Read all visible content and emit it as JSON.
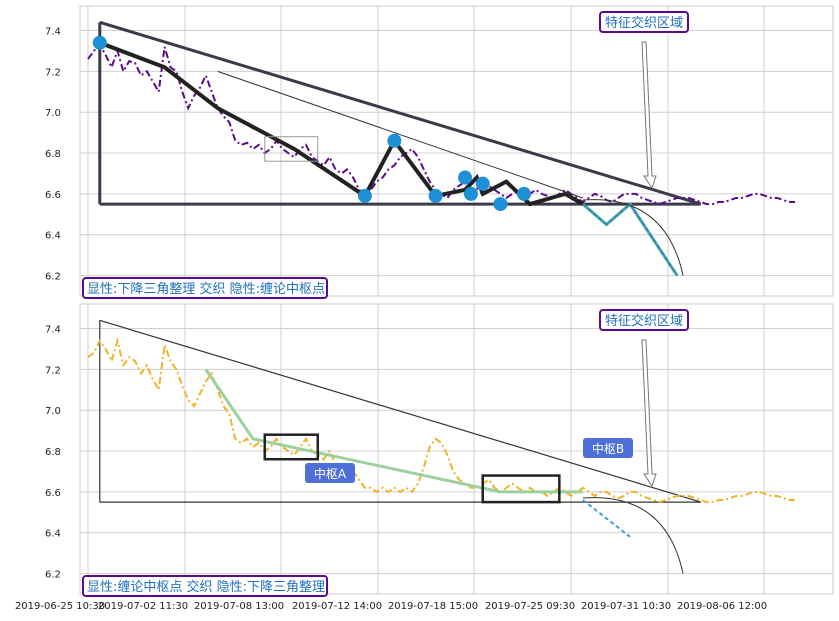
{
  "chart_data": [
    {
      "type": "line",
      "panel": "top",
      "ylim": [
        6.1,
        7.52
      ],
      "y_ticks": [
        "7.4",
        "7.2",
        "7.0",
        "6.8",
        "6.6",
        "6.4",
        "6.2"
      ],
      "y_tick_values": [
        7.4,
        7.2,
        7.0,
        6.8,
        6.6,
        6.4,
        6.2
      ],
      "grid": true,
      "legend_text": "显性:下降三角整理 交织 隐性:缠论中枢点",
      "annotation_text": "特征交织区域",
      "colors": {
        "price": "#5b0a91",
        "trend": "#3a3a4a",
        "markers": "#1e90d6",
        "legend_border": "#5b0a91",
        "legend_text": "#1f6fbf"
      },
      "series": [
        {
          "x": [
            0,
            1,
            2,
            3,
            4,
            5,
            6,
            7,
            8,
            9,
            10,
            11,
            12,
            13,
            14,
            15,
            16,
            17,
            18,
            19,
            20,
            21,
            22,
            23,
            24,
            25,
            26,
            27,
            28,
            29,
            30,
            31,
            32,
            33,
            34,
            35,
            36,
            37,
            38,
            39,
            40,
            41,
            42,
            43,
            44,
            45,
            46,
            47,
            48,
            49,
            50,
            51,
            52,
            53,
            54,
            55,
            56,
            57,
            58,
            59,
            60,
            61,
            62,
            63,
            64,
            65,
            66,
            67,
            68,
            69,
            70,
            71,
            72,
            73,
            74,
            75,
            76,
            77,
            78,
            79,
            80,
            81,
            82,
            83,
            84,
            85,
            86,
            87,
            88,
            89,
            90,
            91,
            92,
            93,
            94,
            95,
            96,
            97,
            98,
            99,
            100,
            101,
            102,
            103,
            104,
            105,
            106,
            107,
            108,
            109,
            110,
            111,
            112,
            113,
            114,
            115,
            116,
            117,
            118,
            119,
            120
          ],
          "y": [
            7.26,
            7.3,
            7.33,
            7.28,
            7.22,
            7.3,
            7.2,
            7.25,
            7.24,
            7.18,
            7.2,
            7.15,
            7.1,
            7.32,
            7.22,
            7.2,
            7.1,
            7.02,
            7.08,
            7.12,
            7.18,
            7.1,
            7.02,
            6.98,
            6.95,
            6.86,
            6.84,
            6.85,
            6.82,
            6.84,
            6.8,
            6.82,
            6.86,
            6.82,
            6.8,
            6.78,
            6.82,
            6.84,
            6.78,
            6.76,
            6.74,
            6.78,
            6.72,
            6.7,
            6.72,
            6.68,
            6.62,
            6.6,
            6.62,
            6.66,
            6.68,
            6.72,
            6.74,
            6.78,
            6.8,
            6.82,
            6.78,
            6.72,
            6.66,
            6.62,
            6.6,
            6.58,
            6.62,
            6.64,
            6.66,
            6.6,
            6.62,
            6.68,
            6.64,
            6.62,
            6.6,
            6.58,
            6.6,
            6.62,
            6.58,
            6.6,
            6.62,
            6.6,
            6.59,
            6.58,
            6.6,
            6.62,
            6.6,
            6.58,
            6.56,
            6.58,
            6.6,
            6.59,
            6.57,
            6.56,
            6.58,
            6.6,
            6.6,
            6.6,
            6.58,
            6.57,
            6.56,
            6.55,
            6.56,
            6.57,
            6.58,
            6.58,
            6.58,
            6.57,
            6.56,
            6.55,
            6.55,
            6.56,
            6.56,
            6.57,
            6.58,
            6.58,
            6.59,
            6.6,
            6.6,
            6.59,
            6.58,
            6.58,
            6.57,
            6.56,
            6.56
          ]
        }
      ]
    },
    {
      "type": "line",
      "panel": "bottom",
      "ylim": [
        6.1,
        7.52
      ],
      "y_ticks": [
        "7.4",
        "7.2",
        "7.0",
        "6.8",
        "6.6",
        "6.4",
        "6.2"
      ],
      "y_tick_values": [
        7.4,
        7.2,
        7.0,
        6.8,
        6.6,
        6.4,
        6.2
      ],
      "x_tick_labels": [
        "2019-06-25 10:30",
        "2019-07-02 11:30",
        "2019-07-08 13:00",
        "2019-07-12 14:00",
        "2019-07-18 15:00",
        "2019-07-25 09:30",
        "2019-07-31 10:30",
        "2019-08-06 12:00"
      ],
      "grid": true,
      "legend_text": "显性:缠论中枢点 交织 隐性:下降三角整理",
      "annotation_text": "特征交织区域",
      "zhongshu_labels": [
        "中枢A",
        "中枢B"
      ],
      "colors": {
        "price": "#f0b429",
        "trend": "#333333",
        "zhongshu": "#4f6fd8",
        "legend_border": "#5b0a91",
        "legend_text": "#1f6fbf"
      },
      "series": [
        {
          "x": [
            0,
            1,
            2,
            3,
            4,
            5,
            6,
            7,
            8,
            9,
            10,
            11,
            12,
            13,
            14,
            15,
            16,
            17,
            18,
            19,
            20,
            21,
            22,
            23,
            24,
            25,
            26,
            27,
            28,
            29,
            30,
            31,
            32,
            33,
            34,
            35,
            36,
            37,
            38,
            39,
            40,
            41,
            42,
            43,
            44,
            45,
            46,
            47,
            48,
            49,
            50,
            51,
            52,
            53,
            54,
            55,
            56,
            57,
            58,
            59,
            60,
            61,
            62,
            63,
            64,
            65,
            66,
            67,
            68,
            69,
            70,
            71,
            72,
            73,
            74,
            75,
            76,
            77,
            78,
            79,
            80,
            81,
            82,
            83,
            84,
            85,
            86,
            87,
            88,
            89,
            90,
            91,
            92,
            93,
            94,
            95,
            96,
            97,
            98,
            99,
            100,
            101,
            102,
            103,
            104,
            105,
            106,
            107,
            108,
            109,
            110,
            111,
            112,
            113,
            114,
            115,
            116,
            117,
            118,
            119,
            120
          ],
          "y": [
            7.26,
            7.28,
            7.34,
            7.3,
            7.24,
            7.34,
            7.22,
            7.26,
            7.24,
            7.18,
            7.22,
            7.15,
            7.1,
            7.32,
            7.24,
            7.2,
            7.12,
            7.05,
            7.02,
            7.08,
            7.14,
            7.18,
            7.1,
            7.02,
            6.98,
            6.86,
            6.84,
            6.86,
            6.82,
            6.84,
            6.8,
            6.82,
            6.86,
            6.82,
            6.8,
            6.78,
            6.82,
            6.86,
            6.8,
            6.78,
            6.76,
            6.8,
            6.74,
            6.72,
            6.72,
            6.7,
            6.66,
            6.62,
            6.62,
            6.6,
            6.62,
            6.6,
            6.62,
            6.6,
            6.62,
            6.6,
            6.64,
            6.72,
            6.82,
            6.86,
            6.84,
            6.78,
            6.7,
            6.66,
            6.64,
            6.62,
            6.62,
            6.64,
            6.66,
            6.62,
            6.6,
            6.62,
            6.64,
            6.62,
            6.6,
            6.62,
            6.6,
            6.6,
            6.58,
            6.6,
            6.62,
            6.6,
            6.58,
            6.6,
            6.62,
            6.6,
            6.58,
            6.6,
            6.6,
            6.58,
            6.57,
            6.58,
            6.6,
            6.6,
            6.58,
            6.57,
            6.56,
            6.55,
            6.56,
            6.57,
            6.58,
            6.58,
            6.58,
            6.57,
            6.56,
            6.55,
            6.55,
            6.56,
            6.56,
            6.57,
            6.58,
            6.58,
            6.59,
            6.6,
            6.6,
            6.59,
            6.58,
            6.58,
            6.57,
            6.56,
            6.56
          ]
        }
      ]
    }
  ]
}
